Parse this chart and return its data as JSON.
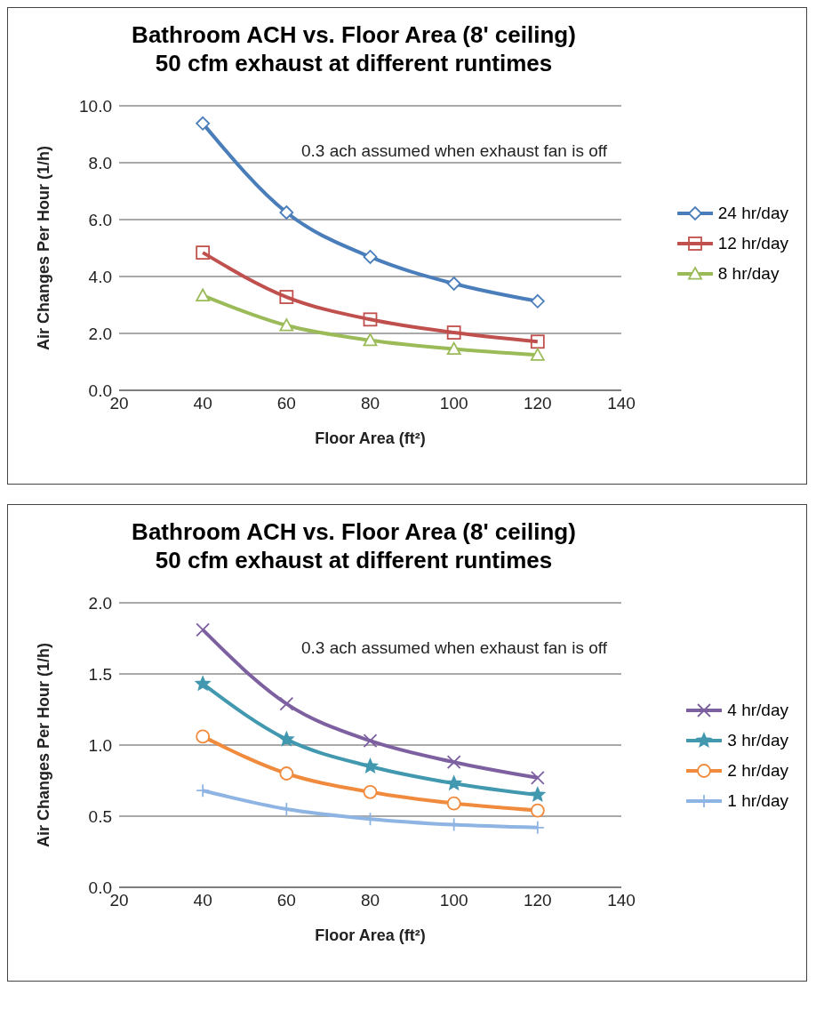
{
  "chart_data": [
    {
      "type": "line",
      "title": "Bathroom ACH vs. Floor Area (8' ceiling)",
      "subtitle": "50 cfm exhaust at different runtimes",
      "xlabel": "Floor Area (ft²)",
      "ylabel": "Air Changes Per Hour (1/h)",
      "annotations": [
        "0.3 ach assumed when exhaust fan is off"
      ],
      "x": [
        40,
        60,
        80,
        100,
        120
      ],
      "series": [
        {
          "name": "24 hr/day",
          "color": "#4a7ebb",
          "marker": "diamond",
          "values": [
            9.38,
            6.25,
            4.69,
            3.75,
            3.13
          ]
        },
        {
          "name": "12 hr/day",
          "color": "#c0504d",
          "marker": "square",
          "values": [
            4.84,
            3.28,
            2.49,
            2.03,
            1.71
          ]
        },
        {
          "name": "8 hr/day",
          "color": "#9bbb59",
          "marker": "triangle",
          "values": [
            3.33,
            2.28,
            1.76,
            1.45,
            1.24
          ]
        }
      ],
      "xlim": [
        20,
        140
      ],
      "xticks": [
        20,
        40,
        60,
        80,
        100,
        120,
        140
      ],
      "ylim": [
        0,
        10
      ],
      "yticks": [
        {
          "value": 0,
          "label": "0.0"
        },
        {
          "value": 2,
          "label": "2.0"
        },
        {
          "value": 4,
          "label": "4.0"
        },
        {
          "value": 6,
          "label": "6.0"
        },
        {
          "value": 8,
          "label": "8.0"
        },
        {
          "value": 10,
          "label": "10.0"
        }
      ],
      "grid": "y",
      "legend": "right"
    },
    {
      "type": "line",
      "title": "Bathroom ACH vs. Floor Area (8' ceiling)",
      "subtitle": "50 cfm exhaust at different runtimes",
      "xlabel": "Floor Area (ft²)",
      "ylabel": "Air Changes Per Hour (1/h)",
      "annotations": [
        "0.3 ach assumed when exhaust fan is off"
      ],
      "x": [
        40,
        60,
        80,
        100,
        120
      ],
      "series": [
        {
          "name": "4 hr/day",
          "color": "#7d60a0",
          "marker": "cross",
          "values": [
            1.81,
            1.29,
            1.03,
            0.88,
            0.77
          ]
        },
        {
          "name": "3 hr/day",
          "color": "#4198af",
          "marker": "star",
          "values": [
            1.43,
            1.04,
            0.85,
            0.73,
            0.65
          ]
        },
        {
          "name": "2 hr/day",
          "color": "#f08a3c",
          "marker": "circle",
          "values": [
            1.06,
            0.8,
            0.67,
            0.59,
            0.54
          ]
        },
        {
          "name": "1 hr/day",
          "color": "#8eb4e3",
          "marker": "plus",
          "values": [
            0.68,
            0.55,
            0.48,
            0.44,
            0.42
          ]
        }
      ],
      "xlim": [
        20,
        140
      ],
      "xticks": [
        20,
        40,
        60,
        80,
        100,
        120,
        140
      ],
      "ylim": [
        0,
        2
      ],
      "yticks": [
        {
          "value": 0,
          "label": "0.0"
        },
        {
          "value": 0.5,
          "label": "0.5"
        },
        {
          "value": 1,
          "label": "1.0"
        },
        {
          "value": 1.5,
          "label": "1.5"
        },
        {
          "value": 2,
          "label": "2.0"
        }
      ],
      "grid": "y",
      "legend": "right"
    }
  ]
}
